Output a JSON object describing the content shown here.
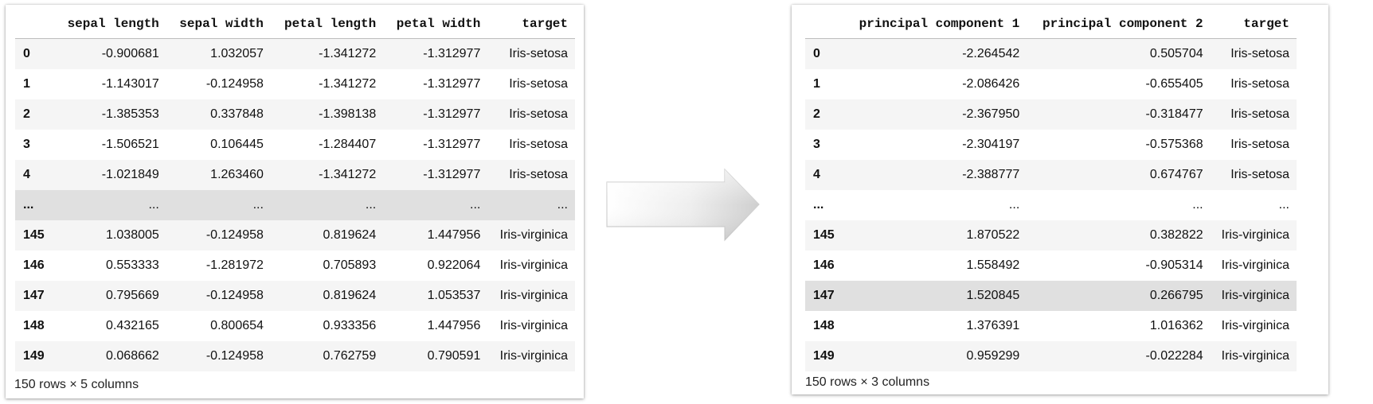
{
  "left_table": {
    "index_header": "",
    "columns": [
      "sepal length",
      "sepal width",
      "petal length",
      "petal width",
      "target"
    ],
    "rows": [
      {
        "index": "0",
        "cells": [
          "-0.900681",
          "1.032057",
          "-1.341272",
          "-1.312977",
          "Iris-setosa"
        ]
      },
      {
        "index": "1",
        "cells": [
          "-1.143017",
          "-0.124958",
          "-1.341272",
          "-1.312977",
          "Iris-setosa"
        ]
      },
      {
        "index": "2",
        "cells": [
          "-1.385353",
          "0.337848",
          "-1.398138",
          "-1.312977",
          "Iris-setosa"
        ]
      },
      {
        "index": "3",
        "cells": [
          "-1.506521",
          "0.106445",
          "-1.284407",
          "-1.312977",
          "Iris-setosa"
        ]
      },
      {
        "index": "4",
        "cells": [
          "-1.021849",
          "1.263460",
          "-1.341272",
          "-1.312977",
          "Iris-setosa"
        ]
      },
      {
        "index": "...",
        "cells": [
          "...",
          "...",
          "...",
          "...",
          "..."
        ]
      },
      {
        "index": "145",
        "cells": [
          "1.038005",
          "-0.124958",
          "0.819624",
          "1.447956",
          "Iris-virginica"
        ]
      },
      {
        "index": "146",
        "cells": [
          "0.553333",
          "-1.281972",
          "0.705893",
          "0.922064",
          "Iris-virginica"
        ]
      },
      {
        "index": "147",
        "cells": [
          "0.795669",
          "-0.124958",
          "0.819624",
          "1.053537",
          "Iris-virginica"
        ]
      },
      {
        "index": "148",
        "cells": [
          "0.432165",
          "0.800654",
          "0.933356",
          "1.447956",
          "Iris-virginica"
        ]
      },
      {
        "index": "149",
        "cells": [
          "0.068662",
          "-0.124958",
          "0.762759",
          "0.790591",
          "Iris-virginica"
        ]
      }
    ],
    "highlighted_row": 5,
    "caption": "150 rows × 5 columns"
  },
  "right_table": {
    "index_header": "",
    "columns": [
      "principal component 1",
      "principal component 2",
      "target"
    ],
    "rows": [
      {
        "index": "0",
        "cells": [
          "-2.264542",
          "0.505704",
          "Iris-setosa"
        ]
      },
      {
        "index": "1",
        "cells": [
          "-2.086426",
          "-0.655405",
          "Iris-setosa"
        ]
      },
      {
        "index": "2",
        "cells": [
          "-2.367950",
          "-0.318477",
          "Iris-setosa"
        ]
      },
      {
        "index": "3",
        "cells": [
          "-2.304197",
          "-0.575368",
          "Iris-setosa"
        ]
      },
      {
        "index": "4",
        "cells": [
          "-2.388777",
          "0.674767",
          "Iris-setosa"
        ]
      },
      {
        "index": "...",
        "cells": [
          "...",
          "...",
          "..."
        ]
      },
      {
        "index": "145",
        "cells": [
          "1.870522",
          "0.382822",
          "Iris-virginica"
        ]
      },
      {
        "index": "146",
        "cells": [
          "1.558492",
          "-0.905314",
          "Iris-virginica"
        ]
      },
      {
        "index": "147",
        "cells": [
          "1.520845",
          "0.266795",
          "Iris-virginica"
        ]
      },
      {
        "index": "148",
        "cells": [
          "1.376391",
          "1.016362",
          "Iris-virginica"
        ]
      },
      {
        "index": "149",
        "cells": [
          "0.959299",
          "-0.022284",
          "Iris-virginica"
        ]
      }
    ],
    "highlighted_row": 8,
    "caption": "150 rows × 3 columns"
  },
  "arrow_icon": "right-arrow-icon",
  "colors": {
    "row_stripe": "#f5f5f5",
    "row_highlight": "#e0e0e0",
    "header_border": "#bdbdbd"
  }
}
